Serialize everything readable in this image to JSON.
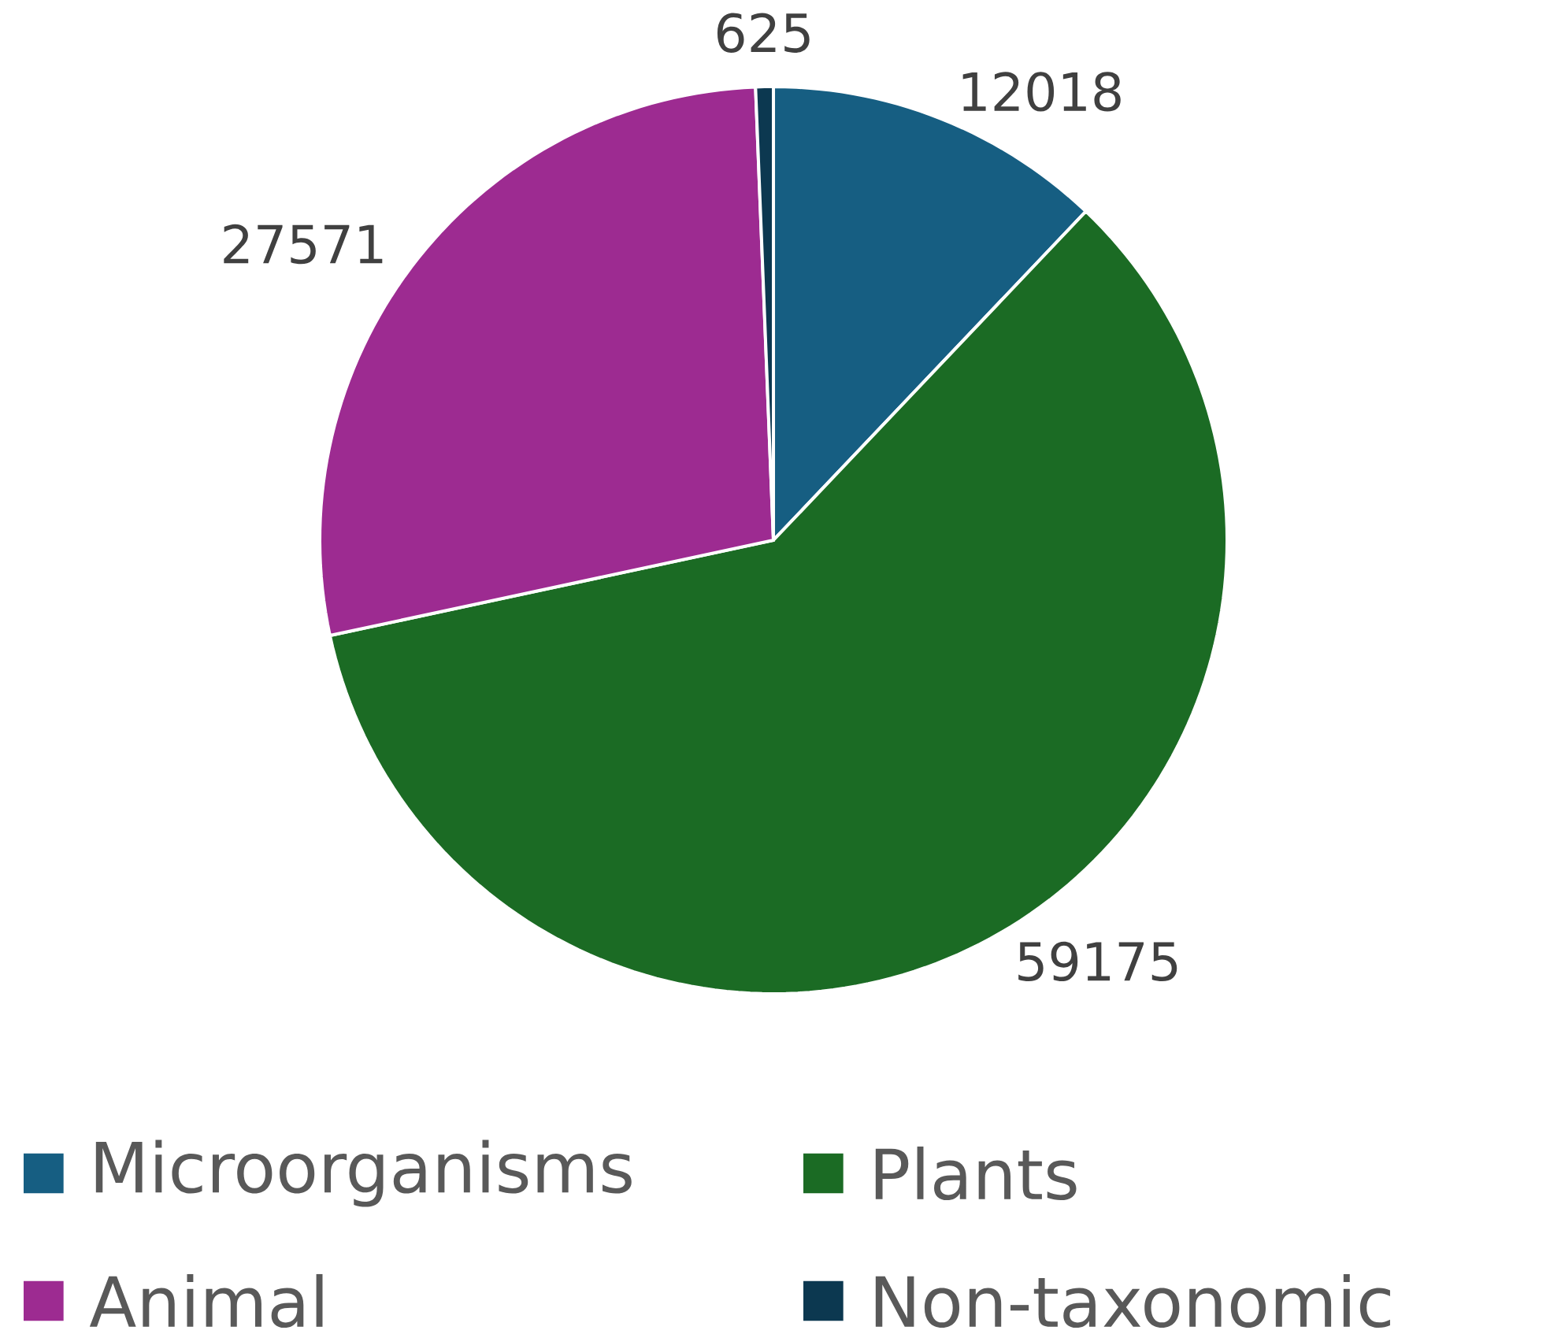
{
  "chart_data": {
    "type": "pie",
    "categories": [
      "Microorganisms",
      "Plants",
      "Animal",
      "Non-taxonomic"
    ],
    "values": [
      12018,
      59175,
      27571,
      625
    ],
    "colors": [
      "#165e82",
      "#1b6b24",
      "#9d2b91",
      "#0c3850"
    ],
    "data_labels": true,
    "legend": "bottom"
  }
}
